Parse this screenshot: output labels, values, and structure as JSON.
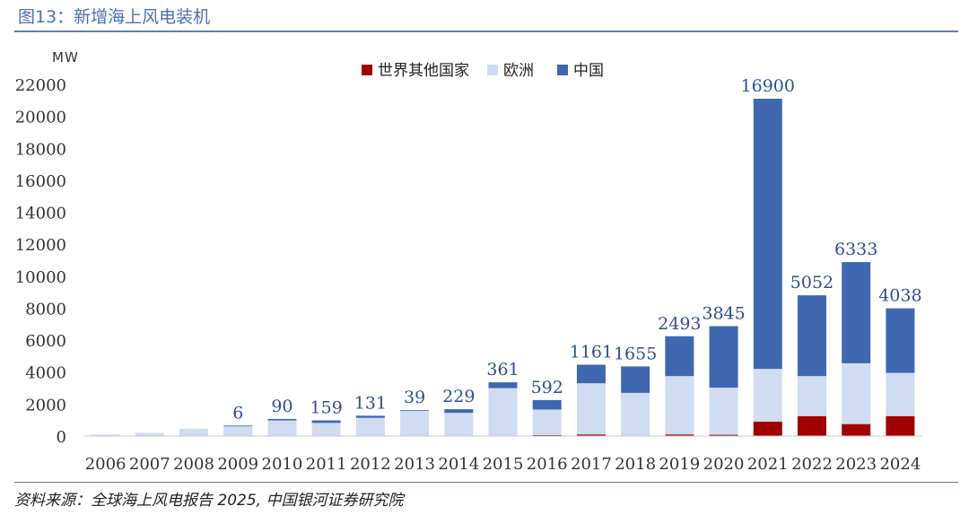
{
  "figure": {
    "title": "图13：新增海上风电装机",
    "source": "资料来源：全球海上风电报告 2025,  中国银河证券研究院"
  },
  "chart_data": {
    "type": "bar",
    "stacked": true,
    "unit_label": "MW",
    "categories": [
      "2006",
      "2007",
      "2008",
      "2009",
      "2010",
      "2011",
      "2012",
      "2013",
      "2014",
      "2015",
      "2016",
      "2017",
      "2018",
      "2019",
      "2020",
      "2021",
      "2022",
      "2023",
      "2024"
    ],
    "series": [
      {
        "name": "世界其他国家",
        "color": "#a00000",
        "values": [
          0,
          0,
          0,
          0,
          0,
          0,
          0,
          0,
          0,
          0,
          60,
          100,
          0,
          100,
          80,
          900,
          1250,
          750,
          1250
        ]
      },
      {
        "name": "欧洲",
        "color": "#cfdcf2",
        "values": [
          90,
          200,
          450,
          650,
          980,
          820,
          1140,
          1580,
          1450,
          3000,
          1600,
          3200,
          2700,
          3650,
          2950,
          3300,
          2500,
          3800,
          2700
        ]
      },
      {
        "name": "中国",
        "color": "#3f67b0",
        "values": [
          0,
          0,
          0,
          6,
          90,
          159,
          131,
          39,
          229,
          361,
          592,
          1161,
          1655,
          2493,
          3845,
          16900,
          5052,
          6333,
          4038
        ]
      }
    ],
    "data_labels": [
      "",
      "",
      "",
      "6",
      "90",
      "159",
      "131",
      "39",
      "229",
      "361",
      "592",
      "1161",
      "1655",
      "2493",
      "3845",
      "16900",
      "5052",
      "6333",
      "4038"
    ],
    "ylim": [
      0,
      22000
    ],
    "yticks": [
      "0",
      "2000",
      "4000",
      "6000",
      "8000",
      "10000",
      "12000",
      "14000",
      "16000",
      "18000",
      "20000",
      "22000"
    ],
    "legend_position": "top-center"
  }
}
